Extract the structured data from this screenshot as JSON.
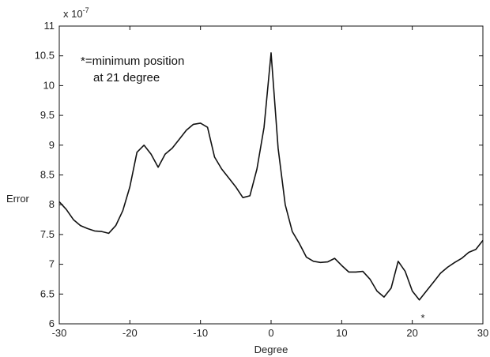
{
  "chart_data": {
    "type": "line",
    "xlabel": "Degree",
    "ylabel": "Error",
    "multiplier_label": "x 10",
    "multiplier_exponent": "-7",
    "xlim": [
      -30,
      30
    ],
    "ylim": [
      6,
      11
    ],
    "xticks": [
      "-30",
      "-20",
      "-10",
      "0",
      "10",
      "20",
      "30"
    ],
    "yticks": [
      "6",
      "6.5",
      "7",
      "7.5",
      "8",
      "8.5",
      "9",
      "9.5",
      "10",
      "10.5",
      "11"
    ],
    "annotation": [
      "*=minimum position",
      "at 21 degree"
    ],
    "marker_symbol": "*",
    "marker_point": {
      "x": 21.5,
      "y": 6.33
    },
    "grid": false,
    "line_color": "#111111",
    "series": [
      {
        "x": [
          -30,
          -29,
          -28,
          -27,
          -26,
          -25,
          -24,
          -23,
          -22,
          -21,
          -20,
          -19,
          -18,
          -17,
          -16,
          -15,
          -14,
          -13,
          -12,
          -11,
          -10,
          -9,
          -8,
          -7,
          -6,
          -5,
          -4,
          -3,
          -2,
          -1,
          0,
          1,
          2,
          3,
          4,
          5,
          6,
          7,
          8,
          9,
          10,
          11,
          12,
          13,
          14,
          15,
          16,
          17,
          18,
          19,
          20,
          21,
          22,
          23,
          24,
          25,
          26,
          27,
          28,
          29,
          30
        ],
        "y": [
          8.05,
          7.92,
          7.75,
          7.65,
          7.6,
          7.56,
          7.55,
          7.52,
          7.65,
          7.9,
          8.3,
          8.88,
          9.0,
          8.85,
          8.63,
          8.85,
          8.95,
          9.1,
          9.25,
          9.35,
          9.37,
          9.3,
          8.8,
          8.6,
          8.45,
          8.3,
          8.12,
          8.15,
          8.6,
          9.3,
          10.55,
          8.95,
          8.0,
          7.55,
          7.35,
          7.12,
          7.05,
          7.03,
          7.04,
          7.1,
          6.98,
          6.87,
          6.87,
          6.88,
          6.75,
          6.55,
          6.45,
          6.6,
          7.05,
          6.88,
          6.55,
          6.4,
          6.55,
          6.7,
          6.85,
          6.95,
          7.03,
          7.1,
          7.2,
          7.25,
          7.4
        ]
      }
    ]
  }
}
